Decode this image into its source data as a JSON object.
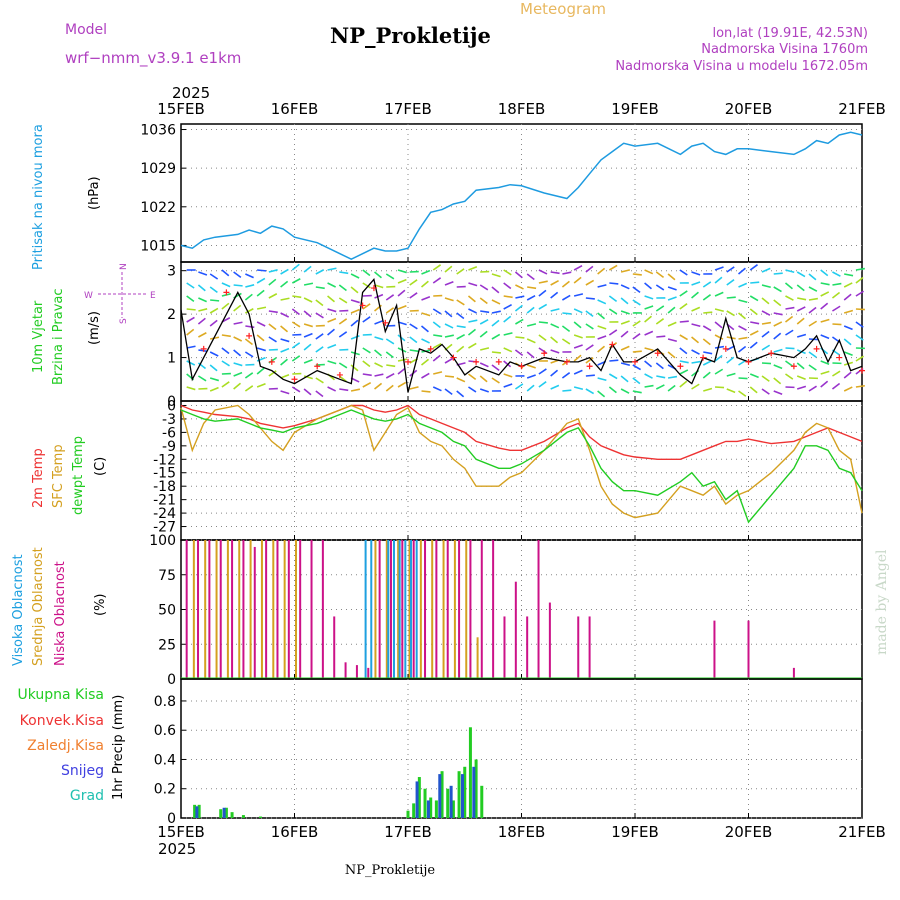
{
  "header": {
    "model_label": "Model",
    "model_name": "wrf−nmm_v3.9.1  e1km",
    "title": "NP_Prokletije",
    "subtitle": "Meteogram",
    "lonlat": "lon,lat (19.91E, 42.53N)",
    "altitude": "Nadmorska Visina 1760m",
    "model_altitude": "Nadmorska Visina u modelu 1672.05m",
    "footer_title": "NP_Prokletije",
    "watermark": "made by Angel"
  },
  "colors": {
    "pressure": "#1E9BE0",
    "wind_speed": "#000000",
    "gust": "#FF2020",
    "temp_2m": "#EE3333",
    "temp_sfc": "#D4A020",
    "dewpoint": "#22CC22",
    "cloud_high": "#1EA0E0",
    "cloud_mid": "#D4A020",
    "cloud_low": "#CC1188",
    "precip_total": "#22CC22",
    "precip_snow": "#2255CC",
    "grad": "#20C0B0",
    "model_text": "#B040C0",
    "watermark": "#C8D8C8"
  },
  "chart_data": [
    {
      "type": "line",
      "panel": "pressure",
      "x_top_year": "2025",
      "x_ticks": [
        "15FEB",
        "16FEB",
        "17FEB",
        "18FEB",
        "19FEB",
        "20FEB",
        "21FEB"
      ],
      "ylabel": "(hPa)",
      "side_label": "Pritisak na nivou mora",
      "ylim": [
        1012,
        1037
      ],
      "y_ticks": [
        "1036",
        "1029",
        "1022",
        "1015"
      ],
      "series": [
        {
          "name": "Pritisak na nivou mora",
          "x": [
            0,
            0.1,
            0.2,
            0.3,
            0.5,
            0.6,
            0.7,
            0.8,
            0.9,
            1.0,
            1.2,
            1.4,
            1.5,
            1.6,
            1.7,
            1.8,
            1.9,
            2.0,
            2.1,
            2.2,
            2.3,
            2.4,
            2.5,
            2.6,
            2.8,
            2.9,
            3.0,
            3.2,
            3.4,
            3.5,
            3.6,
            3.7,
            3.8,
            3.9,
            4.0,
            4.2,
            4.4,
            4.5,
            4.6,
            4.7,
            4.8,
            4.9,
            5.0,
            5.2,
            5.4,
            5.5,
            5.6,
            5.7,
            5.8,
            5.9,
            6.0
          ],
          "values": [
            1015,
            1014.5,
            1016,
            1016.5,
            1017,
            1017.8,
            1017.2,
            1018.5,
            1018,
            1016.5,
            1015.5,
            1013.5,
            1012.5,
            1013.5,
            1014.5,
            1014,
            1014,
            1014.5,
            1018,
            1021,
            1021.5,
            1022.5,
            1023,
            1025,
            1025.5,
            1026,
            1025.8,
            1024.5,
            1023.5,
            1025.5,
            1028,
            1030.5,
            1032,
            1033.5,
            1033,
            1033.5,
            1031.5,
            1033,
            1033.5,
            1032,
            1031.5,
            1032.5,
            1032.5,
            1032,
            1031.5,
            1032.5,
            1034,
            1033.5,
            1035,
            1035.5,
            1035
          ]
        }
      ]
    },
    {
      "type": "line",
      "panel": "wind",
      "x_ticks": [
        "15FEB",
        "16FEB",
        "17FEB",
        "18FEB",
        "19FEB",
        "20FEB",
        "21FEB"
      ],
      "ylabel": "(m/s)",
      "side_label_1": "10m Vjetar",
      "side_label_2": "Brzina i Pravac",
      "compass": [
        "N",
        "W",
        "E",
        "S"
      ],
      "ylim": [
        0,
        3.2
      ],
      "y_ticks": [
        "3",
        "2",
        "1",
        "0"
      ],
      "series": [
        {
          "name": "10m Vjetar Brzina",
          "x": [
            0,
            0.1,
            0.2,
            0.3,
            0.5,
            0.6,
            0.7,
            0.8,
            0.9,
            1.0,
            1.2,
            1.4,
            1.5,
            1.6,
            1.7,
            1.8,
            1.9,
            2.0,
            2.1,
            2.2,
            2.3,
            2.4,
            2.5,
            2.6,
            2.8,
            2.9,
            3.0,
            3.2,
            3.4,
            3.5,
            3.6,
            3.7,
            3.8,
            3.9,
            4.0,
            4.2,
            4.4,
            4.5,
            4.6,
            4.7,
            4.8,
            4.9,
            5.0,
            5.2,
            5.4,
            5.5,
            5.6,
            5.7,
            5.8,
            5.9,
            6.0
          ],
          "values": [
            2.1,
            0.5,
            1.0,
            1.5,
            2.5,
            2.0,
            0.8,
            0.7,
            0.5,
            0.4,
            0.7,
            0.5,
            0.4,
            2.5,
            2.8,
            1.6,
            2.2,
            0.2,
            1.2,
            1.1,
            1.3,
            1.0,
            0.6,
            0.8,
            0.6,
            0.9,
            0.8,
            1.0,
            0.9,
            0.9,
            1.0,
            0.7,
            1.3,
            0.9,
            0.9,
            1.2,
            0.6,
            0.4,
            1.0,
            0.9,
            1.9,
            1.0,
            0.9,
            1.1,
            1.0,
            1.2,
            1.5,
            0.9,
            1.4,
            0.7,
            0.8
          ]
        },
        {
          "name": "gust",
          "x": [
            0.2,
            0.4,
            0.6,
            0.8,
            1.0,
            1.2,
            1.4,
            1.6,
            1.7,
            1.8,
            2.0,
            2.2,
            2.4,
            2.6,
            2.8,
            3.0,
            3.2,
            3.4,
            3.6,
            3.8,
            4.0,
            4.2,
            4.4,
            4.6,
            4.8,
            5.0,
            5.2,
            5.4,
            5.6,
            5.8,
            6.0
          ],
          "values": [
            1.2,
            2.5,
            1.5,
            0.9,
            0.5,
            0.8,
            0.6,
            2.2,
            2.6,
            1.8,
            0.9,
            1.2,
            1.0,
            0.9,
            0.9,
            0.8,
            1.1,
            0.9,
            0.8,
            1.3,
            0.9,
            1.1,
            0.8,
            1.0,
            1.2,
            0.9,
            1.1,
            0.8,
            1.2,
            1.0,
            0.7
          ]
        }
      ]
    },
    {
      "type": "line",
      "panel": "temperature",
      "x_ticks": [
        "15FEB",
        "16FEB",
        "17FEB",
        "18FEB",
        "19FEB",
        "20FEB",
        "21FEB"
      ],
      "ylabel": "(C)",
      "side_labels": [
        "2m Temp",
        "SFC Temp",
        "dewpt Temp"
      ],
      "ylim": [
        -30,
        1
      ],
      "y_ticks": [
        "0",
        "-3",
        "-6",
        "-9",
        "-12",
        "-15",
        "-18",
        "-21",
        "-24",
        "-27"
      ],
      "series": [
        {
          "name": "2m Temp",
          "x": [
            0,
            0.1,
            0.2,
            0.3,
            0.5,
            0.6,
            0.7,
            0.8,
            0.9,
            1.0,
            1.2,
            1.4,
            1.5,
            1.6,
            1.7,
            1.8,
            1.9,
            2.0,
            2.1,
            2.2,
            2.3,
            2.4,
            2.5,
            2.6,
            2.8,
            2.9,
            3.0,
            3.2,
            3.4,
            3.5,
            3.6,
            3.7,
            3.8,
            3.9,
            4.0,
            4.2,
            4.4,
            4.5,
            4.6,
            4.7,
            4.8,
            4.9,
            5.0,
            5.2,
            5.4,
            5.5,
            5.6,
            5.7,
            5.8,
            5.9,
            6.0
          ],
          "values": [
            0,
            -1,
            -1.5,
            -2,
            -2.5,
            -3,
            -4,
            -4.5,
            -5,
            -4.5,
            -3,
            -1,
            0,
            0,
            -1,
            -1.5,
            -1,
            0,
            -2,
            -3,
            -4,
            -5,
            -6,
            -8,
            -9.5,
            -10,
            -10,
            -8,
            -5,
            -4,
            -7,
            -9,
            -10,
            -11,
            -11.5,
            -12,
            -12,
            -11,
            -10,
            -9,
            -8,
            -8,
            -7.5,
            -8.5,
            -8,
            -7,
            -6,
            -5,
            -6,
            -7,
            -8
          ]
        },
        {
          "name": "SFC Temp",
          "x": [
            0,
            0.1,
            0.2,
            0.3,
            0.5,
            0.6,
            0.7,
            0.8,
            0.9,
            1.0,
            1.2,
            1.4,
            1.5,
            1.6,
            1.7,
            1.8,
            1.9,
            2.0,
            2.1,
            2.2,
            2.3,
            2.4,
            2.5,
            2.6,
            2.8,
            2.9,
            3.0,
            3.2,
            3.4,
            3.5,
            3.6,
            3.7,
            3.8,
            3.9,
            4.0,
            4.2,
            4.4,
            4.5,
            4.6,
            4.7,
            4.8,
            4.9,
            5.0,
            5.2,
            5.4,
            5.5,
            5.6,
            5.7,
            5.8,
            5.9,
            6.0
          ],
          "values": [
            -0.5,
            -10,
            -4,
            -1,
            0,
            -2,
            -5,
            -8,
            -10,
            -6,
            -3,
            -1,
            0,
            -1,
            -10,
            -6,
            -2,
            -0.5,
            -6,
            -8,
            -9,
            -12,
            -14,
            -18,
            -18,
            -16,
            -15,
            -10,
            -4,
            -3,
            -10,
            -18,
            -22,
            -24,
            -25,
            -24,
            -18,
            -19,
            -20,
            -18,
            -22,
            -20,
            -19,
            -15,
            -10,
            -6,
            -4,
            -5,
            -10,
            -12,
            -24
          ]
        },
        {
          "name": "dewpt Temp",
          "x": [
            0,
            0.1,
            0.2,
            0.3,
            0.5,
            0.6,
            0.7,
            0.8,
            0.9,
            1.0,
            1.2,
            1.4,
            1.5,
            1.6,
            1.7,
            1.8,
            1.9,
            2.0,
            2.1,
            2.2,
            2.3,
            2.4,
            2.5,
            2.6,
            2.8,
            2.9,
            3.0,
            3.2,
            3.4,
            3.5,
            3.6,
            3.7,
            3.8,
            3.9,
            4.0,
            4.2,
            4.4,
            4.5,
            4.6,
            4.7,
            4.8,
            4.9,
            5.0,
            5.2,
            5.4,
            5.5,
            5.6,
            5.7,
            5.8,
            5.9,
            6.0
          ],
          "values": [
            -1,
            -2,
            -3,
            -3.5,
            -3,
            -4,
            -5,
            -5.5,
            -6,
            -5,
            -4,
            -2,
            -1,
            -2,
            -3,
            -3.5,
            -3,
            -2,
            -4,
            -5,
            -6,
            -8,
            -9,
            -12,
            -14,
            -14,
            -13,
            -10,
            -6,
            -5,
            -9,
            -14,
            -17,
            -19,
            -19,
            -20,
            -17,
            -15,
            -18,
            -17,
            -21,
            -19,
            -26,
            -20,
            -14,
            -9,
            -9,
            -10,
            -14,
            -15,
            -19
          ]
        }
      ]
    },
    {
      "type": "bar",
      "panel": "clouds",
      "x_ticks": [
        "15FEB",
        "16FEB",
        "17FEB",
        "18FEB",
        "19FEB",
        "20FEB",
        "21FEB"
      ],
      "ylabel": "(%)",
      "side_labels": [
        "Visoka Oblacnost",
        "Srednja Oblacnost",
        "Niska Oblacnost"
      ],
      "ylim": [
        0,
        100
      ],
      "y_ticks": [
        "100",
        "75",
        "50",
        "25",
        "0"
      ],
      "series": [
        {
          "name": "Niska Oblacnost",
          "x": [
            0.05,
            0.15,
            0.25,
            0.35,
            0.45,
            0.55,
            0.65,
            0.75,
            0.85,
            0.95,
            1.05,
            1.15,
            1.25,
            1.35,
            1.45,
            1.55,
            1.65,
            1.75,
            1.85,
            1.95,
            2.05,
            2.15,
            2.25,
            2.35,
            2.45,
            2.55,
            2.65,
            2.75,
            2.85,
            2.95,
            3.05,
            3.15,
            3.25,
            3.5,
            3.6,
            4.7,
            5.0,
            5.4
          ],
          "values": [
            100,
            100,
            100,
            100,
            100,
            100,
            95,
            100,
            100,
            100,
            100,
            100,
            100,
            45,
            12,
            10,
            8,
            100,
            100,
            100,
            100,
            100,
            100,
            100,
            100,
            100,
            100,
            100,
            45,
            70,
            45,
            100,
            55,
            45,
            45,
            42,
            42,
            8
          ]
        },
        {
          "name": "Srednja Oblacnost",
          "x": [
            0.1,
            0.2,
            0.3,
            0.4,
            0.5,
            0.6,
            0.7,
            0.8,
            0.9,
            1.0,
            1.7,
            1.8,
            1.9,
            2.0,
            2.1,
            2.2,
            2.3,
            2.4,
            2.5,
            2.6
          ],
          "values": [
            100,
            100,
            100,
            100,
            100,
            100,
            100,
            100,
            100,
            100,
            100,
            100,
            100,
            100,
            100,
            100,
            100,
            100,
            100,
            30
          ]
        },
        {
          "name": "Visoka Oblacnost",
          "x": [
            1.6,
            1.65,
            1.8,
            1.85,
            1.9,
            1.95,
            2.0,
            2.05
          ],
          "values": [
            100,
            100,
            100,
            100,
            100,
            100,
            100,
            100
          ]
        }
      ]
    },
    {
      "type": "bar",
      "panel": "precipitation",
      "x_ticks": [
        "15FEB",
        "16FEB",
        "17FEB",
        "18FEB",
        "19FEB",
        "20FEB",
        "21FEB"
      ],
      "x_bottom_year": "2025",
      "ylabel": "1hr Precip (mm)",
      "legend": [
        "Ukupna Kisa",
        "Konvek.Kisa",
        "Zaledj.Kisa",
        "Snijeg",
        "Grad"
      ],
      "ylim": [
        0,
        0.95
      ],
      "y_ticks": [
        "0.8",
        "0.6",
        "0.4",
        "0.2",
        "0"
      ],
      "series": [
        {
          "name": "Ukupna Kisa",
          "x": [
            0.12,
            0.16,
            0.35,
            0.4,
            0.45,
            0.55,
            0.7,
            2.0,
            2.05,
            2.1,
            2.15,
            2.2,
            2.25,
            2.3,
            2.35,
            2.4,
            2.45,
            2.5,
            2.55,
            2.6,
            2.65
          ],
          "values": [
            0.09,
            0.09,
            0.06,
            0.07,
            0.04,
            0.02,
            0.01,
            0.05,
            0.1,
            0.28,
            0.2,
            0.14,
            0.12,
            0.32,
            0.2,
            0.12,
            0.32,
            0.35,
            0.62,
            0.4,
            0.22
          ]
        },
        {
          "name": "Snijeg",
          "x": [
            0.14,
            0.38,
            2.08,
            2.18,
            2.28,
            2.38,
            2.48,
            2.58
          ],
          "values": [
            0.08,
            0.07,
            0.25,
            0.12,
            0.3,
            0.22,
            0.3,
            0.35
          ]
        }
      ]
    }
  ]
}
